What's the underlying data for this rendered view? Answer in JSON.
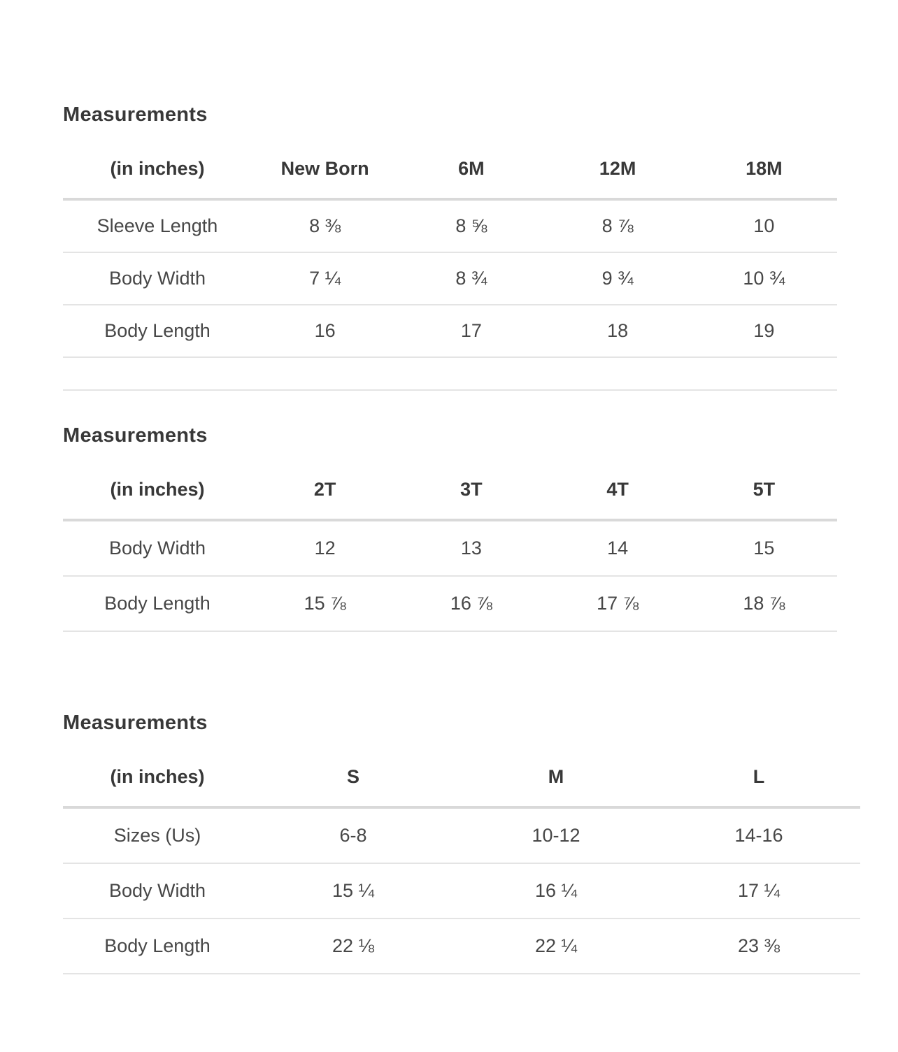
{
  "page": {
    "background": "#ffffff",
    "title_color": "#383838",
    "text_color": "#474747",
    "header_divider_color": "#d9d9d9",
    "row_divider_color": "#e4e4e4"
  },
  "tables": [
    {
      "title": "Measurements",
      "unit_label": "(in inches)",
      "columns": [
        "New Born",
        "6M",
        "12M",
        "18M"
      ],
      "rows": [
        {
          "label": "Sleeve Length",
          "values": [
            "8 ⅜",
            "8 ⅝",
            "8 ⅞",
            "10"
          ]
        },
        {
          "label": "Body Width",
          "values": [
            "7 ¼",
            "8 ¾",
            "9 ¾",
            "10 ¾"
          ]
        },
        {
          "label": "Body Length",
          "values": [
            "16",
            "17",
            "18",
            "19"
          ]
        },
        {
          "label": "",
          "values": [
            "",
            "",
            "",
            ""
          ]
        }
      ]
    },
    {
      "title": "Measurements",
      "unit_label": "(in inches)",
      "columns": [
        "2T",
        "3T",
        "4T",
        "5T"
      ],
      "rows": [
        {
          "label": "Body Width",
          "values": [
            "12",
            "13",
            "14",
            "15"
          ]
        },
        {
          "label": "Body Length",
          "values": [
            "15 ⅞",
            "16 ⅞",
            "17 ⅞",
            "18 ⅞"
          ]
        }
      ]
    },
    {
      "title": "Measurements",
      "unit_label": "(in inches)",
      "columns": [
        "S",
        "M",
        "L"
      ],
      "rows": [
        {
          "label": "Sizes (Us)",
          "values": [
            "6-8",
            "10-12",
            "14-16"
          ]
        },
        {
          "label": "Body Width",
          "values": [
            "15 ¼",
            "16 ¼",
            "17 ¼"
          ]
        },
        {
          "label": "Body Length",
          "values": [
            "22 ⅛",
            "22 ¼",
            "23 ⅜"
          ]
        }
      ]
    }
  ]
}
